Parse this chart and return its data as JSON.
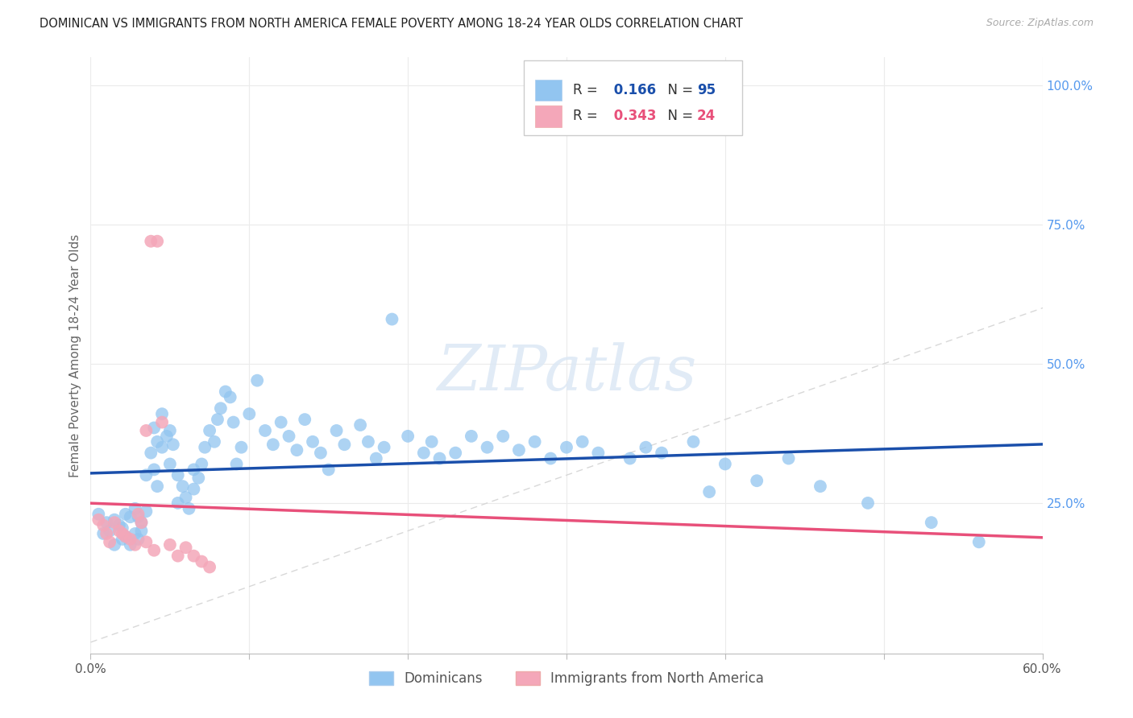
{
  "title": "DOMINICAN VS IMMIGRANTS FROM NORTH AMERICA FEMALE POVERTY AMONG 18-24 YEAR OLDS CORRELATION CHART",
  "source": "Source: ZipAtlas.com",
  "ylabel": "Female Poverty Among 18-24 Year Olds",
  "xlim": [
    0.0,
    0.6
  ],
  "ylim": [
    -0.02,
    1.05
  ],
  "r_blue": 0.166,
  "n_blue": 95,
  "r_pink": 0.343,
  "n_pink": 24,
  "blue_color": "#92C5F0",
  "pink_color": "#F4A7B9",
  "blue_line_color": "#1A4FAB",
  "pink_line_color": "#E8507A",
  "diagonal_color": "#D8D8D8",
  "grid_color": "#EBEBEB",
  "watermark": "ZIPatlas",
  "legend_label_blue": "Dominicans",
  "legend_label_pink": "Immigrants from North America",
  "blue_x": [
    0.005,
    0.008,
    0.01,
    0.012,
    0.015,
    0.015,
    0.018,
    0.02,
    0.02,
    0.022,
    0.022,
    0.025,
    0.025,
    0.028,
    0.028,
    0.03,
    0.03,
    0.032,
    0.032,
    0.035,
    0.035,
    0.038,
    0.04,
    0.04,
    0.042,
    0.042,
    0.045,
    0.045,
    0.048,
    0.05,
    0.05,
    0.052,
    0.055,
    0.055,
    0.058,
    0.06,
    0.062,
    0.065,
    0.065,
    0.068,
    0.07,
    0.072,
    0.075,
    0.078,
    0.08,
    0.082,
    0.085,
    0.088,
    0.09,
    0.092,
    0.095,
    0.1,
    0.105,
    0.11,
    0.115,
    0.12,
    0.125,
    0.13,
    0.135,
    0.14,
    0.145,
    0.15,
    0.155,
    0.16,
    0.17,
    0.175,
    0.18,
    0.185,
    0.19,
    0.2,
    0.21,
    0.215,
    0.22,
    0.23,
    0.24,
    0.25,
    0.26,
    0.27,
    0.28,
    0.29,
    0.3,
    0.31,
    0.32,
    0.34,
    0.35,
    0.36,
    0.38,
    0.39,
    0.4,
    0.42,
    0.44,
    0.46,
    0.49,
    0.53,
    0.56
  ],
  "blue_y": [
    0.23,
    0.195,
    0.215,
    0.2,
    0.22,
    0.175,
    0.21,
    0.205,
    0.185,
    0.19,
    0.23,
    0.225,
    0.175,
    0.195,
    0.24,
    0.185,
    0.225,
    0.2,
    0.215,
    0.235,
    0.3,
    0.34,
    0.385,
    0.31,
    0.36,
    0.28,
    0.35,
    0.41,
    0.37,
    0.32,
    0.38,
    0.355,
    0.3,
    0.25,
    0.28,
    0.26,
    0.24,
    0.31,
    0.275,
    0.295,
    0.32,
    0.35,
    0.38,
    0.36,
    0.4,
    0.42,
    0.45,
    0.44,
    0.395,
    0.32,
    0.35,
    0.41,
    0.47,
    0.38,
    0.355,
    0.395,
    0.37,
    0.345,
    0.4,
    0.36,
    0.34,
    0.31,
    0.38,
    0.355,
    0.39,
    0.36,
    0.33,
    0.35,
    0.58,
    0.37,
    0.34,
    0.36,
    0.33,
    0.34,
    0.37,
    0.35,
    0.37,
    0.345,
    0.36,
    0.33,
    0.35,
    0.36,
    0.34,
    0.33,
    0.35,
    0.34,
    0.36,
    0.27,
    0.32,
    0.29,
    0.33,
    0.28,
    0.25,
    0.215,
    0.18
  ],
  "pink_x": [
    0.005,
    0.008,
    0.01,
    0.012,
    0.015,
    0.018,
    0.02,
    0.022,
    0.025,
    0.028,
    0.03,
    0.032,
    0.035,
    0.035,
    0.038,
    0.04,
    0.042,
    0.045,
    0.05,
    0.055,
    0.06,
    0.065,
    0.07,
    0.075
  ],
  "pink_y": [
    0.22,
    0.21,
    0.195,
    0.18,
    0.215,
    0.2,
    0.195,
    0.19,
    0.185,
    0.175,
    0.23,
    0.215,
    0.38,
    0.18,
    0.72,
    0.165,
    0.72,
    0.395,
    0.175,
    0.155,
    0.17,
    0.155,
    0.145,
    0.135
  ]
}
